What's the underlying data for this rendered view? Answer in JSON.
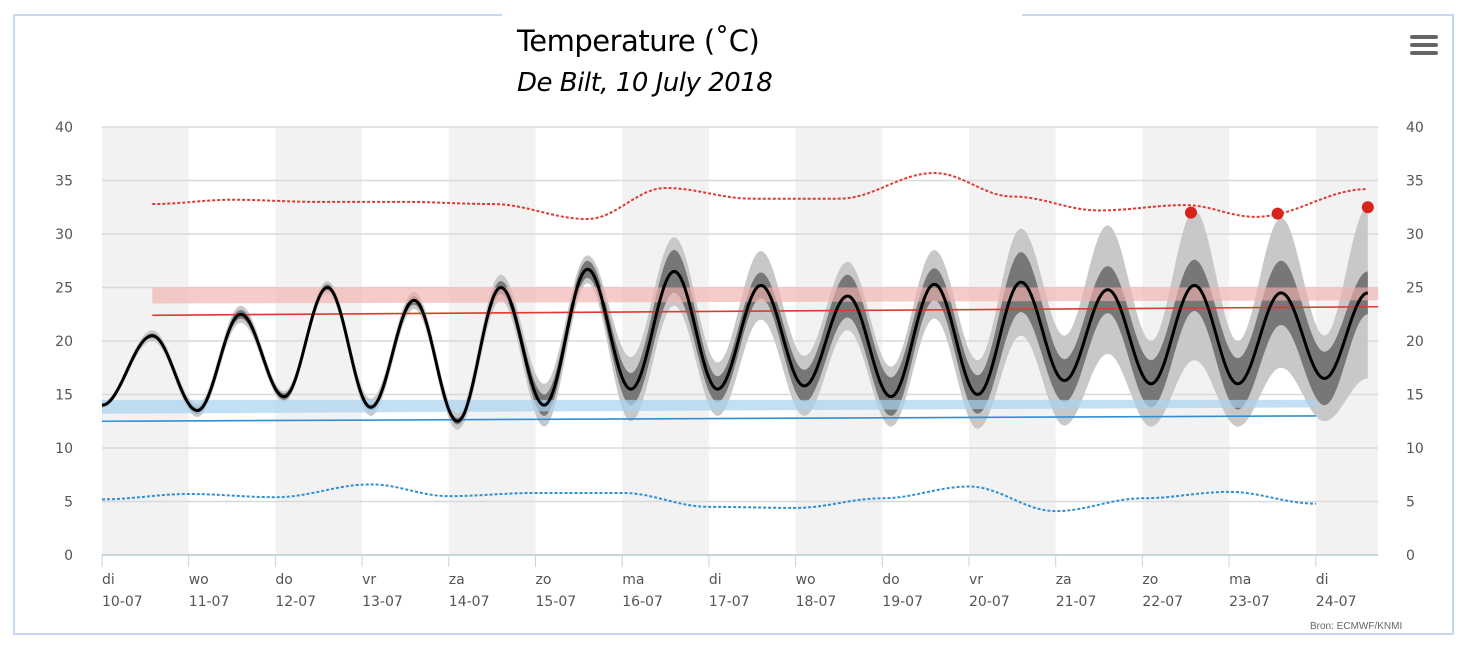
{
  "chart_data": {
    "type": "line",
    "title": "Temperature (˚C)",
    "subtitle": "De Bilt, 10 July 2018",
    "source": "Bron: ECMWF/KNMI",
    "ylim": [
      0,
      40
    ],
    "y_ticks": [
      "0",
      "5",
      "10",
      "15",
      "20",
      "25",
      "30",
      "35",
      "40"
    ],
    "x_unit": "days since 10-07 00:00",
    "xlim": [
      0,
      14.72
    ],
    "x_ticks": [
      {
        "day": "di",
        "date": "10-07"
      },
      {
        "day": "wo",
        "date": "11-07"
      },
      {
        "day": "do",
        "date": "12-07"
      },
      {
        "day": "vr",
        "date": "13-07"
      },
      {
        "day": "za",
        "date": "14-07"
      },
      {
        "day": "zo",
        "date": "15-07"
      },
      {
        "day": "ma",
        "date": "16-07"
      },
      {
        "day": "di",
        "date": "17-07"
      },
      {
        "day": "wo",
        "date": "18-07"
      },
      {
        "day": "do",
        "date": "19-07"
      },
      {
        "day": "vr",
        "date": "20-07"
      },
      {
        "day": "za",
        "date": "21-07"
      },
      {
        "day": "zo",
        "date": "22-07"
      },
      {
        "day": "ma",
        "date": "23-07"
      },
      {
        "day": "di",
        "date": "24-07"
      }
    ],
    "ensemble_extrema": {
      "columns": [
        "t",
        "median",
        "p25_p75_halfwidth",
        "min_max_halfwidth"
      ],
      "rows": [
        [
          0.0,
          14,
          0,
          0.3
        ],
        [
          0.58,
          20.5,
          0.2,
          0.5
        ],
        [
          1.1,
          13.5,
          0.3,
          0.6
        ],
        [
          1.6,
          22.5,
          0.4,
          0.8
        ],
        [
          2.1,
          14.8,
          0.3,
          0.5
        ],
        [
          2.6,
          25,
          0.3,
          0.6
        ],
        [
          3.1,
          13.8,
          0.3,
          0.8
        ],
        [
          3.6,
          23.8,
          0.4,
          0.8
        ],
        [
          4.1,
          12.5,
          0.3,
          0.8
        ],
        [
          4.6,
          25,
          0.6,
          1.2
        ],
        [
          5.1,
          14,
          1,
          2
        ],
        [
          5.6,
          26.7,
          0.8,
          1.3
        ],
        [
          6.1,
          15.5,
          1.5,
          3
        ],
        [
          6.6,
          26.5,
          2,
          3.2
        ],
        [
          7.1,
          15.5,
          1.2,
          2.5
        ],
        [
          7.6,
          25.2,
          1.2,
          3.2
        ],
        [
          8.1,
          15.8,
          1.5,
          2.8
        ],
        [
          8.6,
          24.2,
          2,
          3.2
        ],
        [
          9.1,
          14.8,
          1.8,
          2.8
        ],
        [
          9.6,
          25.3,
          1.5,
          3.2
        ],
        [
          10.1,
          15,
          1.8,
          3.2
        ],
        [
          10.6,
          25.5,
          2.8,
          5
        ],
        [
          11.1,
          16.3,
          2,
          4.2
        ],
        [
          11.6,
          24.8,
          2.2,
          6
        ],
        [
          12.1,
          16,
          2.2,
          4
        ],
        [
          12.6,
          25.2,
          2.4,
          7
        ],
        [
          13.1,
          16,
          2.4,
          4
        ],
        [
          13.6,
          24.5,
          3,
          7
        ],
        [
          14.1,
          16.5,
          2.5,
          4
        ],
        [
          14.6,
          24.5,
          2,
          8
        ]
      ]
    },
    "normal_max_band": {
      "t": [
        0.58,
        14.72
      ],
      "low": [
        23.5,
        23.8
      ],
      "high": [
        25,
        25
      ]
    },
    "normal_max_line": {
      "t": [
        0.58,
        14.72
      ],
      "y": [
        22.4,
        23.2
      ]
    },
    "normal_min_band": {
      "t": [
        0,
        14.0
      ],
      "low": [
        13.2,
        13.8
      ],
      "high": [
        14.5,
        14.5
      ]
    },
    "normal_min_line": {
      "t": [
        0,
        14.0
      ],
      "y": [
        12.5,
        13
      ]
    },
    "record_max": {
      "t": [
        0.58,
        1.5,
        2.5,
        3.5,
        4.5,
        5.6,
        6.5,
        7.5,
        8.5,
        9.6,
        10.5,
        11.5,
        12.5,
        13.3,
        14.6
      ],
      "y": [
        32.8,
        33.2,
        33,
        33,
        32.8,
        31.4,
        34.3,
        33.3,
        33.3,
        35.7,
        33.5,
        32.2,
        32.7,
        31.6,
        34.2
      ]
    },
    "record_min": {
      "t": [
        0,
        1,
        2,
        3.1,
        4,
        5,
        6,
        7,
        8,
        9,
        10,
        11,
        12,
        13,
        14
      ],
      "y": [
        5.2,
        5.7,
        5.4,
        6.6,
        5.5,
        5.8,
        5.8,
        4.5,
        4.4,
        5.3,
        6.4,
        4.1,
        5.3,
        5.9,
        4.8
      ]
    },
    "record_points": {
      "t": [
        12.56,
        13.56,
        14.6
      ],
      "y": [
        32,
        31.9,
        32.5
      ]
    },
    "colors": {
      "median": "#000000",
      "inner": "#777777",
      "outer": "#c8c8c8",
      "red": "#e0392f",
      "red_band": "#efb0ad",
      "blue": "#2f8fd4",
      "blue_band": "#a9d2ee",
      "record": "#d8231b",
      "stripe": "#f2f2f2",
      "grid": "#d9d9d9"
    }
  }
}
